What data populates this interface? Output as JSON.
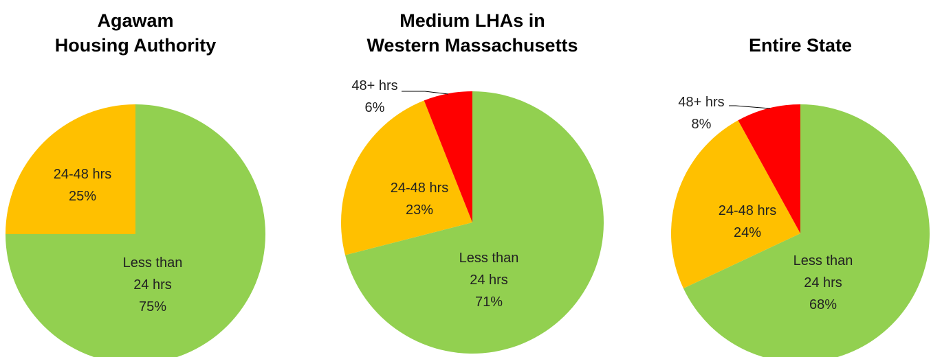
{
  "chart_data": [
    {
      "type": "pie",
      "title": [
        "Agawam",
        "Housing Authority"
      ],
      "categories": [
        "Less than 24 hrs",
        "24-48 hrs"
      ],
      "values": [
        75,
        25
      ],
      "value_labels": [
        "75%",
        "25%"
      ],
      "colors": [
        "#92d050",
        "#ffc000"
      ]
    },
    {
      "type": "pie",
      "title": [
        "Medium LHAs in",
        "Western Massachusetts"
      ],
      "categories": [
        "Less than 24 hrs",
        "24-48 hrs",
        "48+ hrs"
      ],
      "values": [
        71,
        23,
        6
      ],
      "value_labels": [
        "71%",
        "23%",
        "6%"
      ],
      "colors": [
        "#92d050",
        "#ffc000",
        "#ff0000"
      ]
    },
    {
      "type": "pie",
      "title": [
        "Entire State"
      ],
      "categories": [
        "Less than 24 hrs",
        "24-48 hrs",
        "48+ hrs"
      ],
      "values": [
        68,
        24,
        8
      ],
      "value_labels": [
        "68%",
        "24%",
        "8%"
      ],
      "colors": [
        "#92d050",
        "#ffc000",
        "#ff0000"
      ]
    }
  ]
}
